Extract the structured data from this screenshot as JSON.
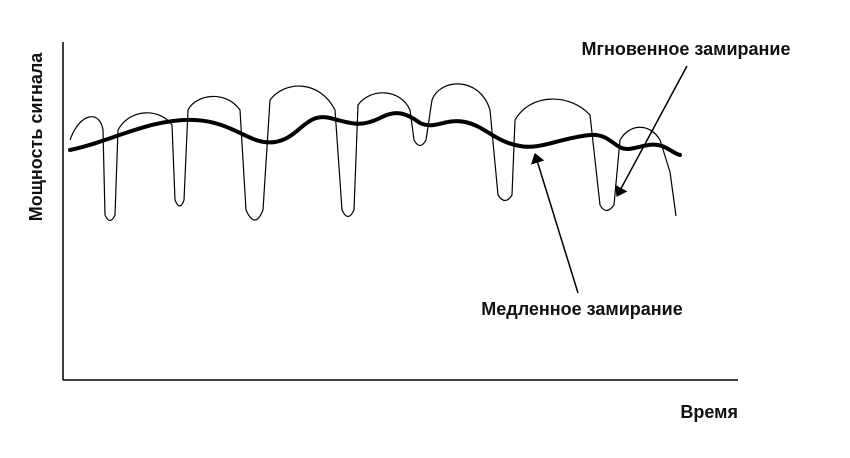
{
  "axes": {
    "y_label": "Мощность сигнала",
    "x_label": "Время"
  },
  "annotations": {
    "fast_fading": "Мгновенное замирание",
    "slow_fading": "Медленное замирание"
  }
}
